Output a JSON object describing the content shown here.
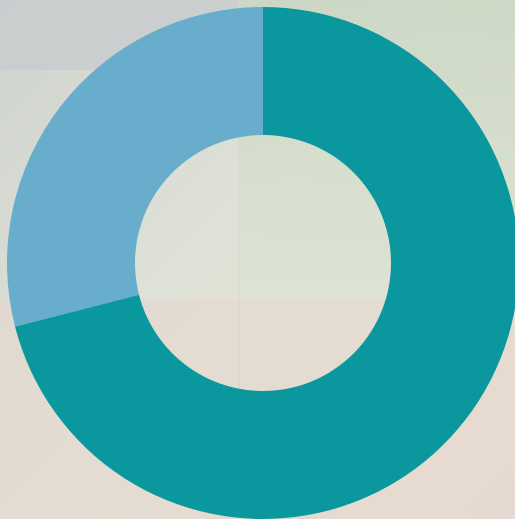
{
  "chart_data": {
    "type": "donut",
    "values": [
      71,
      29
    ],
    "colors": [
      "#0a979d",
      "#68adcc"
    ]
  }
}
